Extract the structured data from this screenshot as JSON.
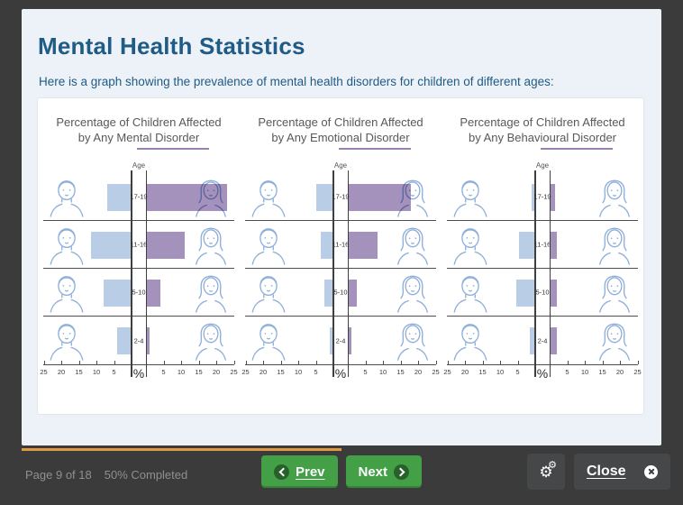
{
  "window": {
    "title": "Mental Health Statistics",
    "subtitle": "Here is a graph showing the prevalence of mental health disorders for children of different ages:"
  },
  "footer": {
    "page_text": "Page 9 of 18",
    "completed_text": "50% Completed",
    "progress_percent": 50,
    "prev_label": "Prev",
    "next_label": "Next",
    "close_label": "Close",
    "icons": {
      "prev": "chevron-left-circle-icon",
      "next": "chevron-right-circle-icon",
      "settings": "cogs-icon",
      "close": "x-circle-icon"
    }
  },
  "colors": {
    "title_navy": "#1f5c85",
    "accent_purple": "#9b7fae",
    "bar_male_blue": "#b9cde6",
    "bar_female_purple": "#a492bc",
    "face_line_blue": "#8fafd9",
    "button_green": "#43a047",
    "progress_orange": "#e0993f",
    "frame_dark": "#3b3b3b",
    "card_background": "#edf1f8"
  },
  "chart_data": [
    {
      "type": "bar",
      "orientation": "horizontal-diverging",
      "title": "Percentage of Children Affected by Any Mental Disorder",
      "title_line1": "Percentage of Children Affected",
      "title_line2": "by Any Mental Disorder",
      "center_axis_label": "Age",
      "percent_label": "%",
      "categories": [
        "17-19",
        "11-16",
        "5-10",
        "2-4"
      ],
      "tick_values": [
        25,
        20,
        15,
        10,
        5
      ],
      "xlim": [
        0,
        25
      ],
      "grid": false,
      "series": [
        {
          "name": "male",
          "side": "left",
          "values": [
            7,
            11.5,
            8,
            4
          ]
        },
        {
          "name": "female",
          "side": "right",
          "values": [
            23,
            11,
            4,
            1
          ]
        }
      ]
    },
    {
      "type": "bar",
      "orientation": "horizontal-diverging",
      "title": "Percentage of Children Affected by Any Emotional Disorder",
      "title_line1": "Percentage of Children Affected",
      "title_line2": "by Any Emotional Disorder",
      "center_axis_label": "Age",
      "percent_label": "%",
      "categories": [
        "17-19",
        "11-16",
        "5-10",
        "2-4"
      ],
      "tick_values": [
        25,
        20,
        15,
        10,
        5
      ],
      "xlim": [
        0,
        25
      ],
      "grid": false,
      "series": [
        {
          "name": "male",
          "side": "left",
          "values": [
            5,
            3.5,
            2.5,
            1
          ]
        },
        {
          "name": "female",
          "side": "right",
          "values": [
            18,
            8.5,
            2.5,
            1
          ]
        }
      ]
    },
    {
      "type": "bar",
      "orientation": "horizontal-diverging",
      "title": "Percentage of Children Affected by Any Behavioural Disorder",
      "title_line1": "Percentage of Children Affected",
      "title_line2": "by Any Behavioural Disorder",
      "center_axis_label": "Age",
      "percent_label": "%",
      "categories": [
        "17-19",
        "11-16",
        "5-10",
        "2-4"
      ],
      "tick_values": [
        25,
        20,
        15,
        10,
        5
      ],
      "xlim": [
        0,
        25
      ],
      "grid": false,
      "series": [
        {
          "name": "male",
          "side": "left",
          "values": [
            1,
            4.5,
            5.5,
            1.5
          ]
        },
        {
          "name": "female",
          "side": "right",
          "values": [
            1.5,
            2,
            2,
            2
          ]
        }
      ]
    }
  ]
}
